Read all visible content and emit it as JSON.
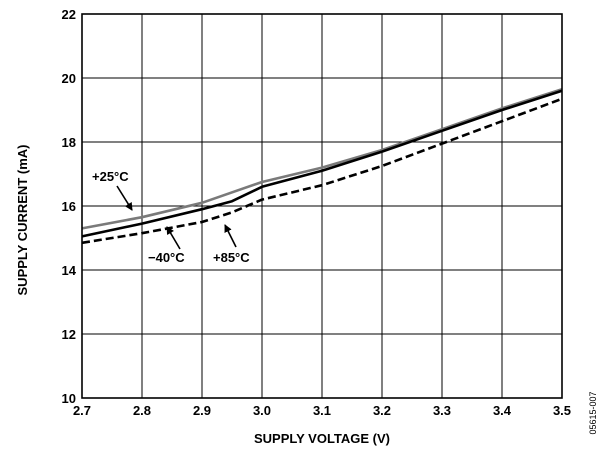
{
  "chart_data": {
    "type": "line",
    "xlabel": "SUPPLY VOLTAGE (V)",
    "ylabel": "SUPPLY CURRENT (mA)",
    "xlim": [
      2.7,
      3.5
    ],
    "ylim": [
      10,
      22
    ],
    "x_ticks": [
      "2.7",
      "2.8",
      "2.9",
      "3.0",
      "3.1",
      "3.2",
      "3.3",
      "3.4",
      "3.5"
    ],
    "y_ticks": [
      "10",
      "12",
      "14",
      "16",
      "18",
      "20",
      "22"
    ],
    "grid": true,
    "series": [
      {
        "name": "+25°C",
        "color": "#7a7a7a",
        "style": "solid",
        "points": [
          [
            2.7,
            15.3
          ],
          [
            2.8,
            15.65
          ],
          [
            2.9,
            16.1
          ],
          [
            3.0,
            16.75
          ],
          [
            3.1,
            17.2
          ],
          [
            3.2,
            17.75
          ],
          [
            3.3,
            18.4
          ],
          [
            3.4,
            19.05
          ],
          [
            3.5,
            19.65
          ]
        ]
      },
      {
        "name": "−40°C",
        "color": "#000000",
        "style": "solid",
        "points": [
          [
            2.7,
            15.05
          ],
          [
            2.8,
            15.45
          ],
          [
            2.9,
            15.9
          ],
          [
            2.95,
            16.15
          ],
          [
            3.0,
            16.6
          ],
          [
            3.1,
            17.1
          ],
          [
            3.2,
            17.7
          ],
          [
            3.3,
            18.35
          ],
          [
            3.4,
            19.0
          ],
          [
            3.5,
            19.6
          ]
        ]
      },
      {
        "name": "+85°C",
        "color": "#000000",
        "style": "dashed",
        "points": [
          [
            2.7,
            14.85
          ],
          [
            2.8,
            15.15
          ],
          [
            2.9,
            15.5
          ],
          [
            2.95,
            15.8
          ],
          [
            3.0,
            16.2
          ],
          [
            3.1,
            16.65
          ],
          [
            3.2,
            17.25
          ],
          [
            3.3,
            17.95
          ],
          [
            3.4,
            18.65
          ],
          [
            3.5,
            19.35
          ]
        ]
      }
    ],
    "annotations": [
      {
        "text": "+25°C",
        "series": "+25°C"
      },
      {
        "text": "−40°C",
        "series": "−40°C"
      },
      {
        "text": "+85°C",
        "series": "+85°C"
      }
    ]
  },
  "figure_id": "05615-007"
}
